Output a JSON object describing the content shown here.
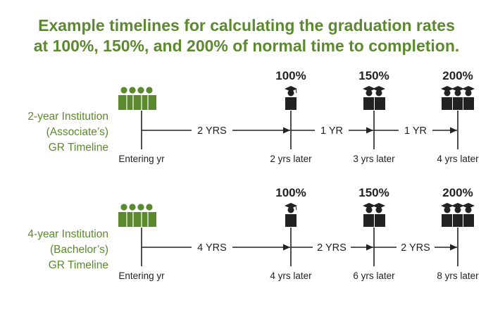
{
  "title": {
    "line1": "Example timelines for calculating the graduation rates",
    "line2": "at 100%, 150%, and 200% of normal time to completion."
  },
  "colors": {
    "accent": "#5b8a2e",
    "ink": "#222222"
  },
  "icons": {
    "group": "group-of-students-icon",
    "graduate_one": "graduate-icon",
    "graduate_two": "two-graduates-icon",
    "graduate_three": "three-graduates-icon"
  },
  "timelines": [
    {
      "label_lines": [
        "2-year Institution",
        "(Associate’s)",
        "GR Timeline"
      ],
      "percent_labels": [
        "100%",
        "150%",
        "200%"
      ],
      "segment_labels": [
        "2 YRS",
        "1 YR",
        "1 YR"
      ],
      "point_labels": [
        "Entering yr",
        "2 yrs later",
        "3 yrs later",
        "4 yrs later"
      ]
    },
    {
      "label_lines": [
        "4-year Institution",
        "(Bachelor’s)",
        "GR Timeline"
      ],
      "percent_labels": [
        "100%",
        "150%",
        "200%"
      ],
      "segment_labels": [
        "4 YRS",
        "2 YRS",
        "2 YRS"
      ],
      "point_labels": [
        "Entering yr",
        "4 yrs later",
        "6 yrs later",
        "8 yrs later"
      ]
    }
  ]
}
